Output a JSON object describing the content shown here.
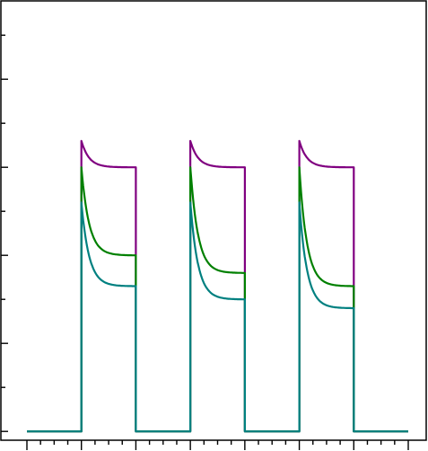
{
  "chart_data": {
    "type": "line",
    "title": "",
    "xlabel": "",
    "ylabel": "",
    "xlim": [
      0,
      14
    ],
    "ylim": [
      -0.1,
      4.9
    ],
    "grid": false,
    "legend": "none",
    "pulses": [
      {
        "on": 2,
        "off": 4
      },
      {
        "on": 6,
        "off": 8
      },
      {
        "on": 10,
        "off": 12
      }
    ],
    "baseline": 0,
    "series": [
      {
        "color": "#800080",
        "peak": [
          3.3,
          3.3,
          3.3
        ],
        "end": [
          3.0,
          3.0,
          3.0
        ]
      },
      {
        "color": "#008000",
        "peak": [
          3.0,
          3.0,
          3.0
        ],
        "end": [
          2.0,
          1.8,
          1.65
        ]
      },
      {
        "color": "#008080",
        "peak": [
          2.6,
          2.6,
          2.6
        ],
        "end": [
          1.65,
          1.5,
          1.4
        ]
      }
    ]
  }
}
